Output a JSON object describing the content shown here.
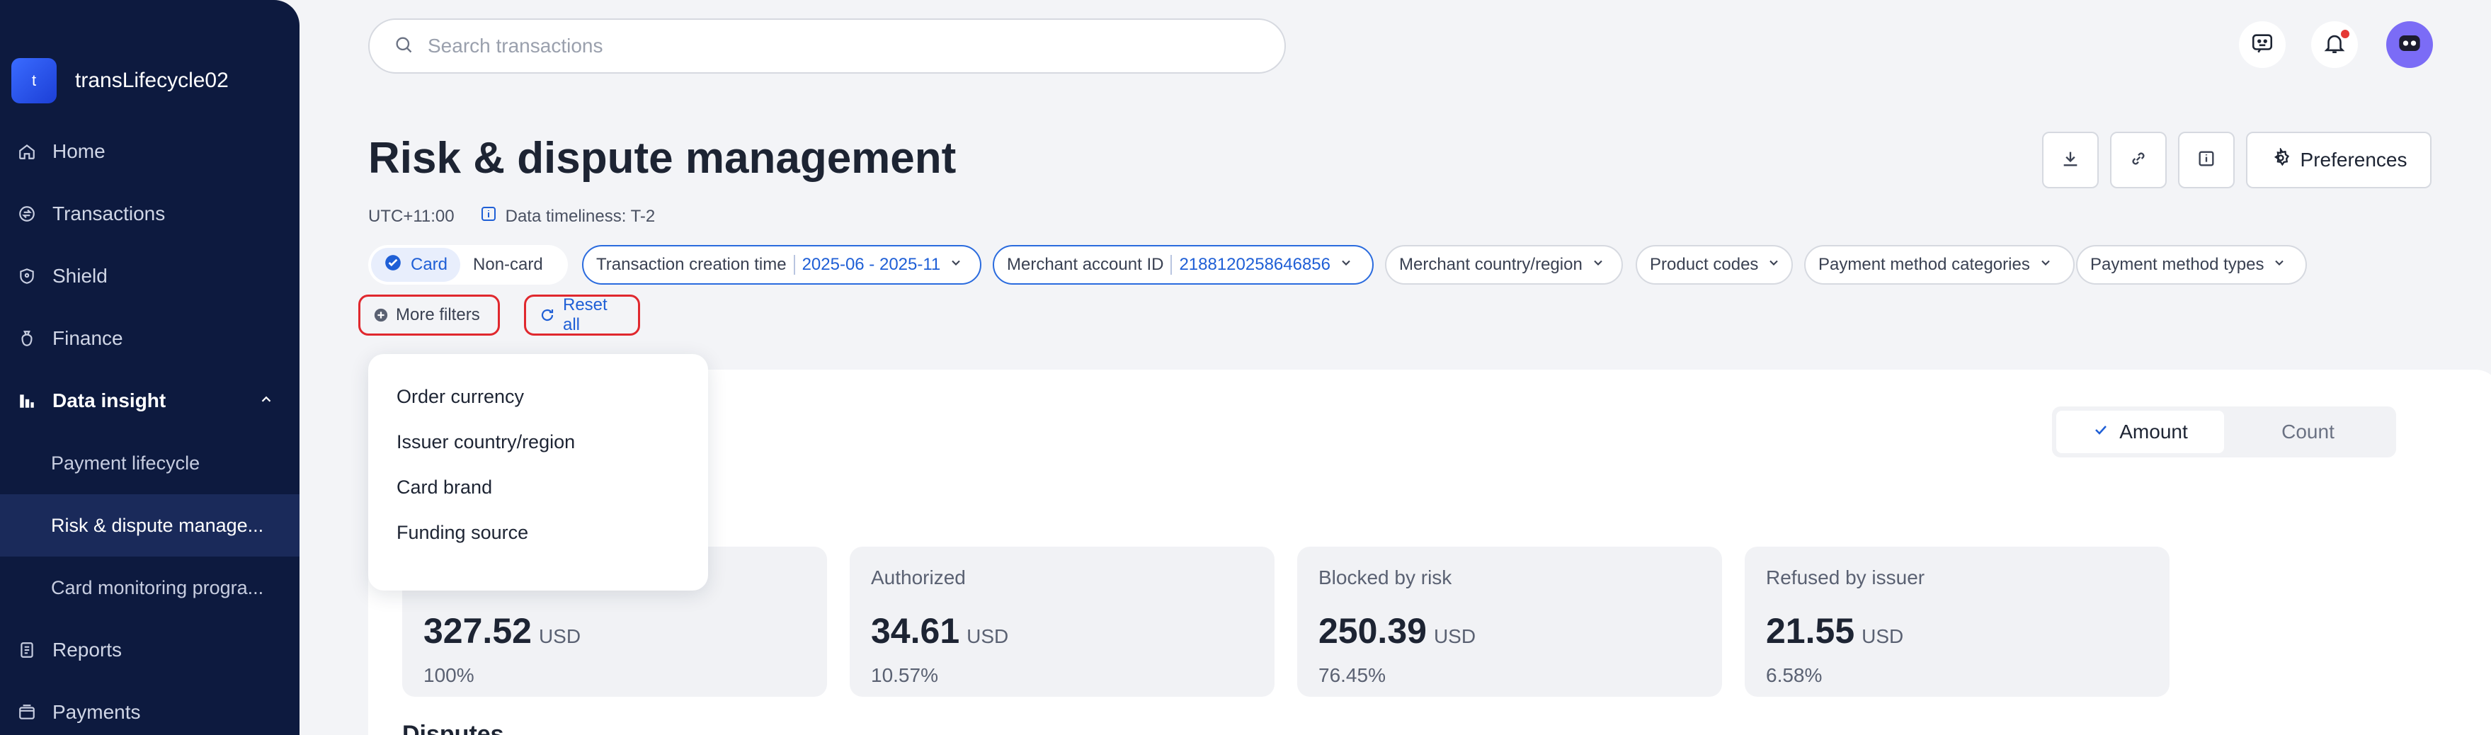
{
  "sidebar": {
    "brand_initial": "t",
    "brand_name": "transLifecycle02",
    "items": [
      {
        "label": "Home",
        "icon": "home-icon"
      },
      {
        "label": "Transactions",
        "icon": "transactions-icon"
      },
      {
        "label": "Shield",
        "icon": "shield-icon"
      },
      {
        "label": "Finance",
        "icon": "finance-icon"
      }
    ],
    "group": {
      "label": "Data insight",
      "icon": "bar-chart-icon",
      "expanded": true
    },
    "sub_items": [
      {
        "label": "Payment lifecycle",
        "active": false
      },
      {
        "label": "Risk & dispute manage...",
        "active": true
      },
      {
        "label": "Card monitoring progra...",
        "active": false
      }
    ],
    "bottom_items": [
      {
        "label": "Reports",
        "icon": "reports-icon"
      },
      {
        "label": "Payments",
        "icon": "payments-icon"
      }
    ]
  },
  "search": {
    "placeholder": "Search transactions",
    "value": ""
  },
  "header": {
    "title": "Risk & dispute management",
    "timezone": "UTC+11:00",
    "data_timeliness": "Data timeliness: T-2",
    "preferences_label": "Preferences"
  },
  "filters": {
    "card_type": {
      "options": [
        "Card",
        "Non-card"
      ],
      "selected": "Card"
    },
    "creation_time": {
      "label": "Transaction creation time",
      "value": "2025-06 - 2025-11"
    },
    "merchant_account": {
      "label": "Merchant account ID",
      "value": "2188120258646856"
    },
    "merchant_country": "Merchant country/region",
    "product_codes": "Product codes",
    "payment_method_categories": "Payment method categories",
    "payment_method_types": "Payment method types",
    "more_filters": "More filters",
    "reset_all": "Reset all"
  },
  "more_filters_menu": [
    "Order currency",
    "Issuer country/region",
    "Card brand",
    "Funding source"
  ],
  "metric_toggle": {
    "options": [
      "Amount",
      "Count"
    ],
    "selected": "Amount"
  },
  "stats": [
    {
      "label": "",
      "value": "327.52",
      "unit": "USD",
      "percent": "100%"
    },
    {
      "label": "Authorized",
      "value": "34.61",
      "unit": "USD",
      "percent": "10.57%"
    },
    {
      "label": "Blocked by risk",
      "value": "250.39",
      "unit": "USD",
      "percent": "76.45%"
    },
    {
      "label": "Refused by issuer",
      "value": "21.55",
      "unit": "USD",
      "percent": "6.58%"
    }
  ],
  "disputes_title": "Disputes",
  "colors": {
    "sidebar_bg": "#0d1a3f",
    "accent": "#1f5fd6",
    "highlight_border": "#e0282e"
  }
}
